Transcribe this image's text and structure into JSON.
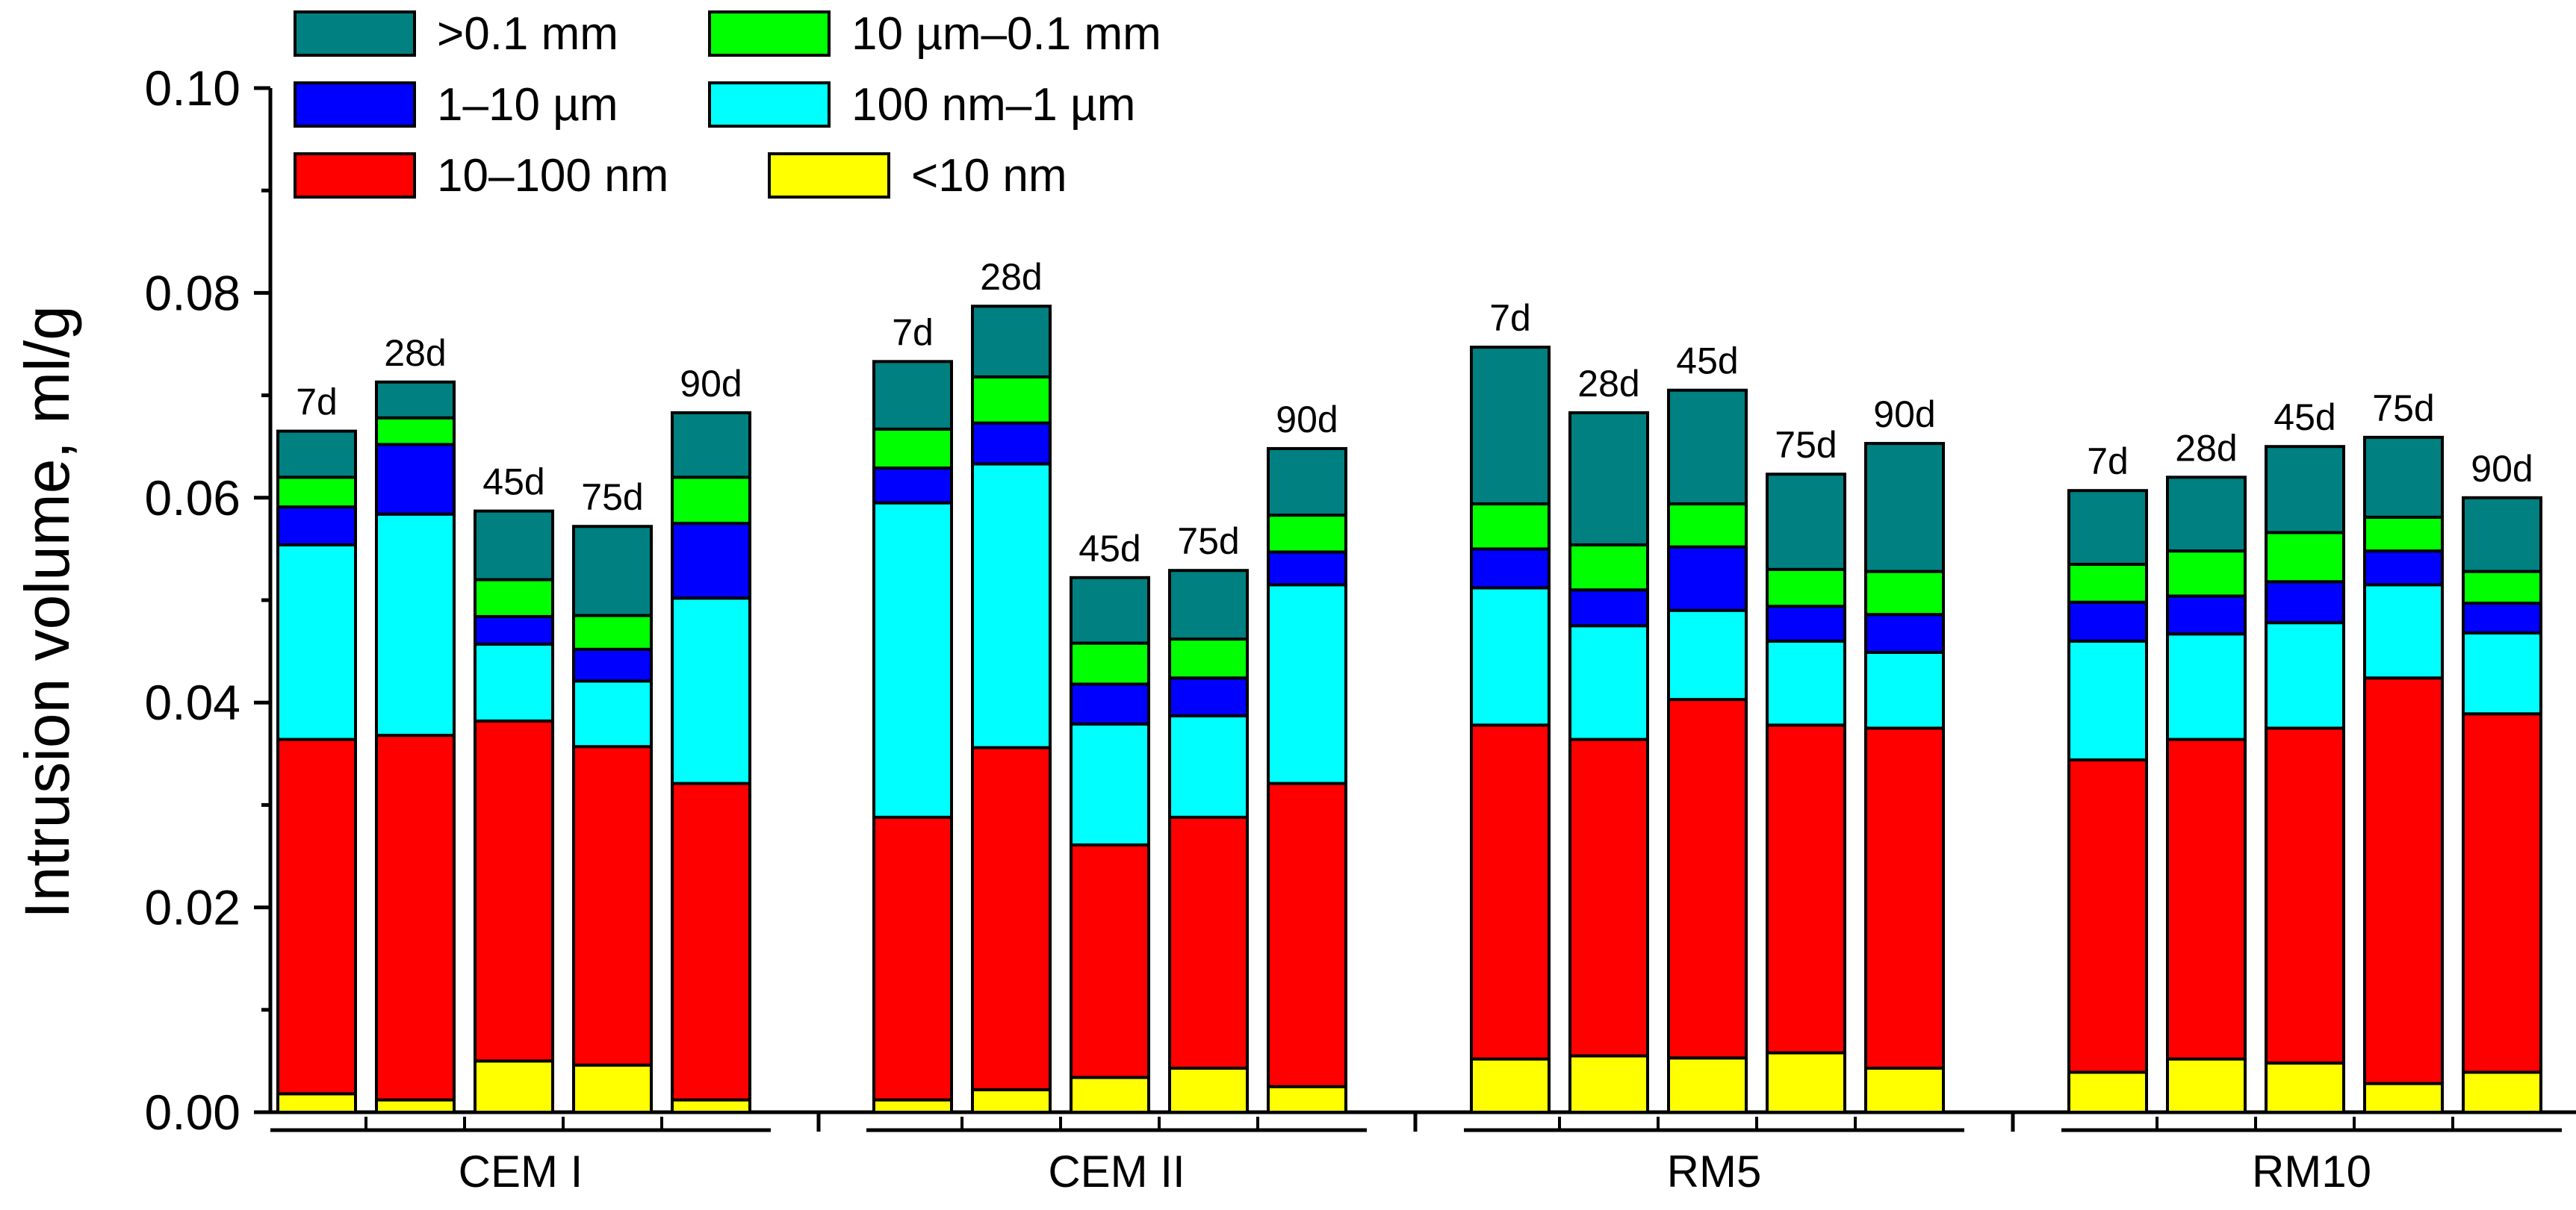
{
  "chart_data": {
    "type": "bar",
    "stacked": true,
    "title": "",
    "xlabel": "",
    "ylabel": "Intrusion volume, ml/g",
    "ylim": [
      0,
      0.1
    ],
    "yticks": [
      "0.00",
      "0.02",
      "0.04",
      "0.06",
      "0.08",
      "0.10"
    ],
    "legend_position": "top-left",
    "series": [
      {
        "name": "<10 nm",
        "color": "#ffff00"
      },
      {
        "name": "10–100 nm",
        "color": "#ff0000"
      },
      {
        "name": "100 nm–1 µm",
        "color": "#00ffff"
      },
      {
        "name": "1–10 µm",
        "color": "#0000ff"
      },
      {
        "name": "10 µm–0.1 mm",
        "color": "#00ff00"
      },
      {
        "name": ">0.1 mm",
        "color": "#008080"
      }
    ],
    "groups": [
      {
        "name": "CEM I",
        "bars": [
          {
            "label": "7d",
            "tops": [
              0.0018,
              0.0364,
              0.0554,
              0.0591,
              0.062,
              0.0665
            ]
          },
          {
            "label": "28d",
            "tops": [
              0.0012,
              0.0368,
              0.0584,
              0.0652,
              0.0678,
              0.0713
            ]
          },
          {
            "label": "45d",
            "tops": [
              0.005,
              0.0382,
              0.0457,
              0.0484,
              0.052,
              0.0587
            ]
          },
          {
            "label": "75d",
            "tops": [
              0.0046,
              0.0357,
              0.0421,
              0.0452,
              0.0485,
              0.0572
            ]
          },
          {
            "label": "90d",
            "tops": [
              0.0012,
              0.0321,
              0.0502,
              0.0575,
              0.062,
              0.0683
            ]
          }
        ]
      },
      {
        "name": "CEM II",
        "bars": [
          {
            "label": "7d",
            "tops": [
              0.0012,
              0.0288,
              0.0595,
              0.0629,
              0.0667,
              0.0733
            ]
          },
          {
            "label": "28d",
            "tops": [
              0.0022,
              0.0356,
              0.0633,
              0.0673,
              0.0718,
              0.0787
            ]
          },
          {
            "label": "45d",
            "tops": [
              0.0034,
              0.0261,
              0.0379,
              0.0418,
              0.0458,
              0.0522
            ]
          },
          {
            "label": "75d",
            "tops": [
              0.0043,
              0.0288,
              0.0387,
              0.0424,
              0.0462,
              0.0529
            ]
          },
          {
            "label": "90d",
            "tops": [
              0.0025,
              0.0321,
              0.0515,
              0.0547,
              0.0583,
              0.0648
            ]
          }
        ]
      },
      {
        "name": "RM5",
        "bars": [
          {
            "label": "7d",
            "tops": [
              0.0052,
              0.0378,
              0.0512,
              0.055,
              0.0594,
              0.0747
            ]
          },
          {
            "label": "28d",
            "tops": [
              0.0055,
              0.0364,
              0.0475,
              0.051,
              0.0554,
              0.0683
            ]
          },
          {
            "label": "45d",
            "tops": [
              0.0053,
              0.0403,
              0.049,
              0.0552,
              0.0594,
              0.0705
            ]
          },
          {
            "label": "75d",
            "tops": [
              0.0058,
              0.0378,
              0.046,
              0.0494,
              0.053,
              0.0623
            ]
          },
          {
            "label": "90d",
            "tops": [
              0.0043,
              0.0375,
              0.0449,
              0.0486,
              0.0528,
              0.0653
            ]
          }
        ]
      },
      {
        "name": "RM10",
        "bars": [
          {
            "label": "7d",
            "tops": [
              0.0039,
              0.0344,
              0.046,
              0.0498,
              0.0535,
              0.0607
            ]
          },
          {
            "label": "28d",
            "tops": [
              0.0052,
              0.0364,
              0.0467,
              0.0504,
              0.0548,
              0.062
            ]
          },
          {
            "label": "45d",
            "tops": [
              0.0048,
              0.0375,
              0.0478,
              0.0518,
              0.0566,
              0.065
            ]
          },
          {
            "label": "75d",
            "tops": [
              0.0028,
              0.0424,
              0.0515,
              0.0548,
              0.0581,
              0.0659
            ]
          },
          {
            "label": "90d",
            "tops": [
              0.0039,
              0.0389,
              0.0468,
              0.0497,
              0.0528,
              0.06
            ]
          }
        ]
      }
    ]
  }
}
